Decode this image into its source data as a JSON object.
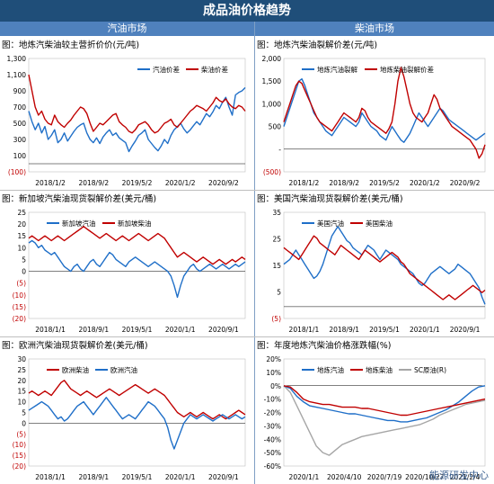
{
  "header": {
    "title": "成品油价格趋势",
    "left_section": "汽油市场",
    "right_section": "柴油市场"
  },
  "watermark": "能源研发中心",
  "colors": {
    "blue": "#1f6fc8",
    "red": "#c00000",
    "gray": "#a6a6a6",
    "header": "#1f4e79",
    "section": "#4f81bd"
  },
  "chart_data": [
    {
      "type": "line",
      "title": "图：地炼汽柴油较主营折价价(元/吨)",
      "ylim": [
        -100,
        1300
      ],
      "yticks": [
        "1,300",
        "1,100",
        "900",
        "700",
        "500",
        "300",
        "100",
        "(100)"
      ],
      "xticks": [
        "2018/1/2",
        "2018/9/2",
        "2019/5/2",
        "2020/1/2",
        "2020/9/2"
      ],
      "legend_position": "top-right",
      "series": [
        {
          "name": "汽油价差",
          "color": "#1f6fc8",
          "values": [
            650,
            520,
            420,
            500,
            380,
            460,
            300,
            350,
            420,
            260,
            300,
            380,
            280,
            340,
            400,
            450,
            480,
            500,
            380,
            300,
            260,
            320,
            250,
            330,
            380,
            420,
            350,
            380,
            320,
            290,
            260,
            150,
            220,
            280,
            350,
            380,
            420,
            300,
            250,
            200,
            160,
            220,
            300,
            250,
            350,
            420,
            460,
            500,
            430,
            380,
            420,
            470,
            520,
            480,
            550,
            620,
            580,
            640,
            720,
            680,
            760,
            820,
            700,
            600,
            850,
            880,
            900,
            940
          ]
        },
        {
          "name": "柴油价差",
          "color": "#c00000",
          "values": [
            1100,
            900,
            700,
            600,
            650,
            550,
            500,
            480,
            600,
            520,
            480,
            450,
            500,
            540,
            600,
            650,
            700,
            680,
            620,
            500,
            400,
            450,
            500,
            480,
            520,
            560,
            600,
            620,
            520,
            480,
            450,
            400,
            380,
            420,
            480,
            500,
            520,
            480,
            420,
            380,
            400,
            450,
            500,
            520,
            550,
            480,
            450,
            500,
            550,
            600,
            650,
            680,
            720,
            700,
            680,
            650,
            700,
            750,
            820,
            780,
            760,
            800,
            740,
            700,
            680,
            720,
            700,
            650
          ]
        }
      ]
    },
    {
      "type": "line",
      "title": "图：地炼汽柴油裂解价差(元/吨)",
      "ylim": [
        -500,
        2000
      ],
      "yticks": [
        "2,000",
        "1,500",
        "1,000",
        "500",
        "-",
        "(500)"
      ],
      "xticks": [
        "2018/1/2",
        "2018/9/2",
        "2019/5/2",
        "2020/1/2",
        "2020/9/2"
      ],
      "legend_position": "top",
      "series": [
        {
          "name": "地炼汽油裂解",
          "color": "#1f6fc8",
          "values": [
            500,
            700,
            900,
            1100,
            1300,
            1500,
            1550,
            1400,
            1200,
            1000,
            800,
            700,
            600,
            500,
            400,
            350,
            300,
            400,
            500,
            600,
            700,
            650,
            600,
            550,
            500,
            600,
            800,
            700,
            600,
            500,
            450,
            400,
            300,
            250,
            200,
            350,
            500,
            400,
            300,
            200,
            150,
            250,
            350,
            500,
            650,
            800,
            700,
            600,
            500,
            600,
            700,
            800,
            900,
            850,
            750,
            650,
            600,
            550,
            500,
            450,
            400,
            350,
            300,
            250,
            200,
            250,
            300,
            350
          ]
        },
        {
          "name": "地炼柴油裂解价差",
          "color": "#c00000",
          "values": [
            600,
            800,
            1000,
            1200,
            1400,
            1500,
            1450,
            1300,
            1150,
            1000,
            850,
            700,
            600,
            550,
            500,
            450,
            400,
            500,
            600,
            700,
            800,
            750,
            700,
            650,
            600,
            700,
            900,
            850,
            700,
            600,
            550,
            500,
            450,
            400,
            350,
            450,
            600,
            1000,
            1500,
            1800,
            1600,
            1300,
            1000,
            800,
            700,
            650,
            600,
            700,
            800,
            1000,
            1200,
            1100,
            900,
            800,
            700,
            600,
            500,
            450,
            400,
            350,
            300,
            250,
            200,
            100,
            0,
            -200,
            -100,
            100
          ]
        }
      ]
    },
    {
      "type": "line",
      "title": "图：新加坡汽柴油现货裂解价差(美元/桶)",
      "ylim": [
        -20,
        25
      ],
      "yticks": [
        "25",
        "20",
        "15",
        "10",
        "5",
        "0",
        "(5)",
        "(10)",
        "(15)",
        "(20)"
      ],
      "xticks": [
        "2018/1/1",
        "2018/9/1",
        "2019/5/1",
        "2020/1/1",
        "2020/9/1"
      ],
      "legend_position": "top",
      "series": [
        {
          "name": "新加坡汽油",
          "color": "#1f6fc8",
          "values": [
            12,
            13,
            12,
            10,
            11,
            9,
            8,
            7,
            8,
            6,
            4,
            2,
            1,
            0,
            2,
            3,
            1,
            0,
            2,
            4,
            5,
            3,
            2,
            4,
            6,
            8,
            7,
            5,
            4,
            3,
            2,
            4,
            5,
            6,
            5,
            4,
            3,
            2,
            3,
            4,
            3,
            2,
            1,
            0,
            -2,
            -6,
            -11,
            -6,
            -2,
            0,
            2,
            3,
            1,
            0,
            1,
            2,
            3,
            2,
            1,
            2,
            3,
            2,
            1,
            2,
            3,
            2,
            3,
            4
          ]
        },
        {
          "name": "新加坡柴油",
          "color": "#c00000",
          "values": [
            14,
            15,
            14,
            13,
            14,
            15,
            14,
            13,
            14,
            15,
            14,
            13,
            14,
            15,
            16,
            17,
            18,
            19,
            18,
            17,
            16,
            15,
            14,
            15,
            16,
            15,
            14,
            13,
            14,
            15,
            14,
            13,
            14,
            15,
            16,
            15,
            14,
            13,
            14,
            15,
            16,
            15,
            14,
            12,
            10,
            8,
            6,
            7,
            8,
            7,
            6,
            5,
            4,
            5,
            6,
            5,
            4,
            3,
            4,
            5,
            4,
            3,
            4,
            5,
            4,
            5,
            6,
            5
          ]
        }
      ]
    },
    {
      "type": "line",
      "title": "图：美国汽柴油现货裂解价差(美元/桶)",
      "ylim": [
        -5,
        40
      ],
      "yticks": [
        "35",
        "25",
        "15",
        "5",
        "(5)"
      ],
      "xticks": [
        "2018/1/1",
        "2018/9/1",
        "2019/5/1",
        "2020/1/1",
        "2020/9/1"
      ],
      "legend_position": "top",
      "series": [
        {
          "name": "美国汽油",
          "color": "#1f6fc8",
          "values": [
            18,
            19,
            20,
            22,
            24,
            22,
            20,
            18,
            16,
            14,
            12,
            13,
            15,
            18,
            22,
            26,
            30,
            32,
            34,
            32,
            30,
            28,
            27,
            25,
            24,
            23,
            22,
            24,
            26,
            25,
            24,
            22,
            20,
            22,
            24,
            23,
            22,
            21,
            20,
            18,
            17,
            16,
            15,
            14,
            12,
            10,
            9,
            10,
            12,
            14,
            15,
            16,
            17,
            16,
            15,
            14,
            15,
            16,
            18,
            17,
            16,
            15,
            14,
            12,
            10,
            8,
            4,
            1
          ]
        },
        {
          "name": "美国柴油",
          "color": "#c00000",
          "values": [
            25,
            24,
            23,
            22,
            21,
            20,
            22,
            24,
            26,
            28,
            30,
            29,
            27,
            26,
            25,
            24,
            23,
            22,
            24,
            26,
            25,
            24,
            23,
            22,
            21,
            20,
            22,
            24,
            23,
            22,
            21,
            20,
            19,
            20,
            21,
            22,
            23,
            22,
            21,
            19,
            18,
            16,
            14,
            13,
            12,
            11,
            10,
            9,
            8,
            7,
            6,
            5,
            4,
            3,
            4,
            5,
            4,
            3,
            4,
            5,
            6,
            7,
            8,
            9,
            8,
            7,
            6,
            7
          ]
        }
      ]
    },
    {
      "type": "line",
      "title": "图：欧洲汽柴油现货裂解价差(美元/桶)",
      "ylim": [
        -20,
        30
      ],
      "yticks": [
        "30",
        "25",
        "20",
        "15",
        "10",
        "5",
        "0",
        "(5)",
        "(10)",
        "(15)",
        "(20)"
      ],
      "xticks": [
        "2018/1/1",
        "2018/9/1",
        "2019/5/1",
        "2020/1/1",
        "2020/9/1"
      ],
      "legend_position": "top",
      "series": [
        {
          "name": "欧洲柴油",
          "color": "#c00000",
          "values": [
            14,
            15,
            14,
            13,
            14,
            15,
            14,
            13,
            15,
            17,
            19,
            20,
            18,
            16,
            15,
            14,
            13,
            14,
            15,
            14,
            13,
            12,
            13,
            14,
            15,
            16,
            15,
            14,
            13,
            14,
            15,
            16,
            17,
            18,
            17,
            16,
            15,
            14,
            15,
            16,
            15,
            14,
            13,
            11,
            9,
            7,
            5,
            4,
            3,
            4,
            5,
            4,
            3,
            4,
            5,
            4,
            3,
            2,
            3,
            4,
            3,
            2,
            3,
            4,
            5,
            6,
            5,
            4
          ]
        },
        {
          "name": "欧洲汽油",
          "color": "#1f6fc8",
          "values": [
            6,
            7,
            8,
            9,
            10,
            9,
            8,
            6,
            4,
            2,
            3,
            1,
            2,
            4,
            6,
            8,
            9,
            10,
            8,
            6,
            4,
            6,
            8,
            10,
            12,
            10,
            8,
            6,
            4,
            2,
            3,
            4,
            3,
            2,
            4,
            6,
            8,
            10,
            9,
            8,
            6,
            4,
            2,
            -2,
            -8,
            -12,
            -8,
            -4,
            0,
            2,
            4,
            3,
            2,
            3,
            4,
            3,
            2,
            1,
            2,
            3,
            4,
            3,
            2,
            3,
            4,
            3,
            2,
            3
          ]
        }
      ]
    },
    {
      "type": "line",
      "title": "图：年度地炼汽柴油价格涨跌幅(%)",
      "ylim": [
        -60,
        20
      ],
      "yticks": [
        "20%",
        "10%",
        "0%",
        "-10%",
        "-20%",
        "-30%",
        "-40%",
        "-50%",
        "-60%"
      ],
      "xticks": [
        "2020/1/1",
        "2020/4/10",
        "2020/7/19",
        "2020/10/27",
        "2021/2/4"
      ],
      "legend_position": "top",
      "series": [
        {
          "name": "地炼汽油",
          "color": "#1f6fc8",
          "values": [
            0,
            -2,
            -8,
            -12,
            -15,
            -16,
            -17,
            -18,
            -19,
            -20,
            -21,
            -21,
            -22,
            -23,
            -24,
            -25,
            -26,
            -26,
            -27,
            -27,
            -26,
            -25,
            -24,
            -22,
            -20,
            -18,
            -15,
            -12,
            -8,
            -4,
            -1,
            0
          ]
        },
        {
          "name": "地炼柴油",
          "color": "#c00000",
          "values": [
            0,
            -1,
            -5,
            -10,
            -12,
            -13,
            -14,
            -14,
            -15,
            -16,
            -16,
            -16,
            -17,
            -17,
            -18,
            -19,
            -20,
            -21,
            -22,
            -22,
            -21,
            -20,
            -19,
            -18,
            -17,
            -16,
            -15,
            -14,
            -13,
            -12,
            -11,
            -10
          ]
        },
        {
          "name": "SC原油(R)",
          "color": "#a6a6a6",
          "values": [
            0,
            -5,
            -15,
            -25,
            -35,
            -45,
            -50,
            -52,
            -48,
            -44,
            -42,
            -40,
            -38,
            -37,
            -36,
            -35,
            -34,
            -33,
            -32,
            -31,
            -30,
            -29,
            -27,
            -25,
            -22,
            -20,
            -18,
            -16,
            -14,
            -13,
            -12,
            -11
          ]
        }
      ]
    }
  ]
}
